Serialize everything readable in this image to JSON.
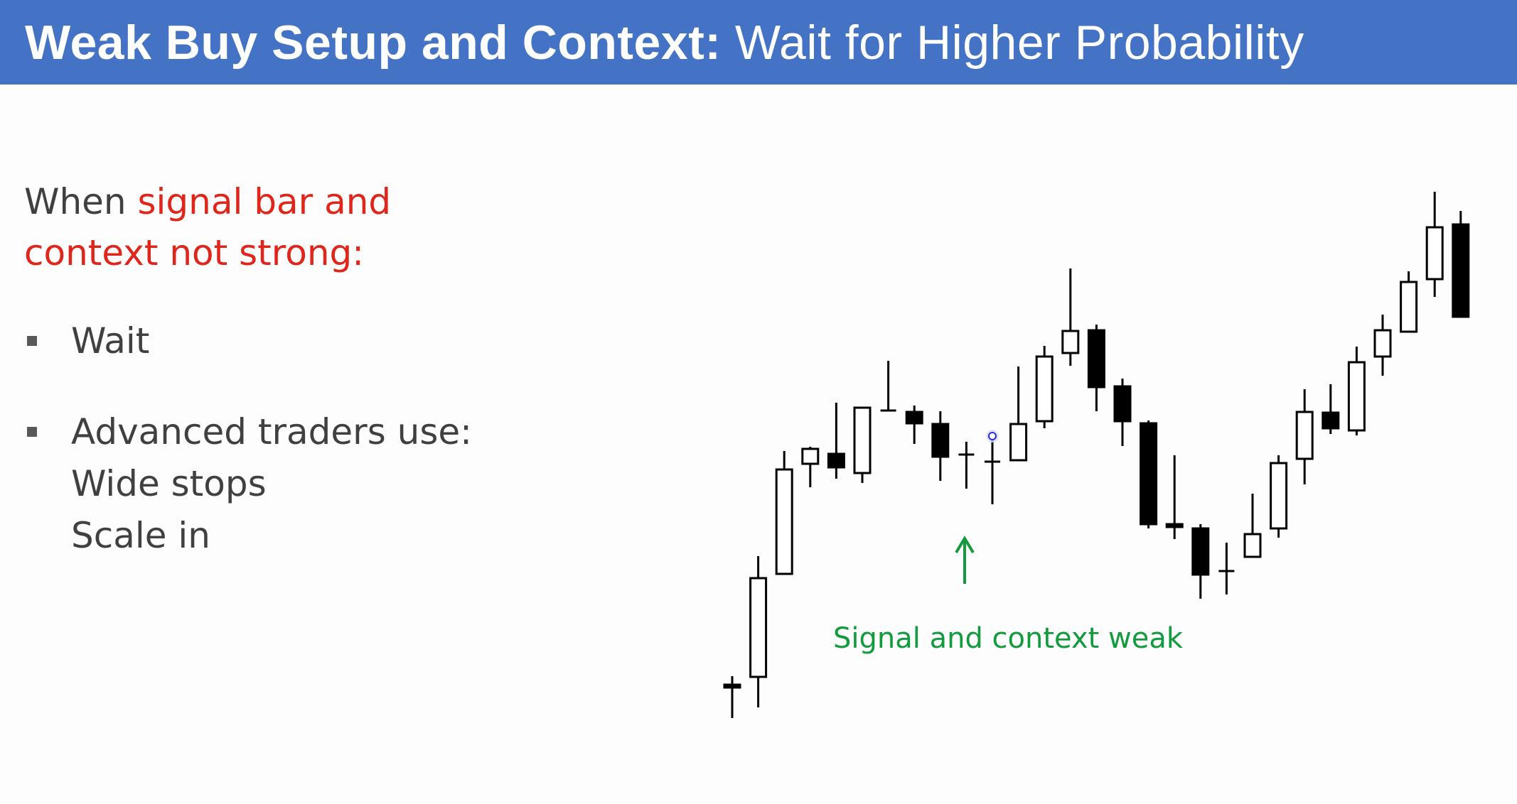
{
  "slide": {
    "title_bold": "Weak Buy Setup and Context:",
    "title_rest": "Wait for Higher Probability",
    "intro": {
      "prefix": "When ",
      "highlight_line1": "signal bar and",
      "highlight_line2": "context not strong:"
    },
    "bullets": {
      "wait": "Wait",
      "advanced": "Advanced traders use:",
      "wide_stops": "Wide stops",
      "scale_in": "Scale in"
    },
    "annotation": "Signal and context weak",
    "colors": {
      "title_bar": "#4472c4",
      "highlight": "#e0251b",
      "annotation": "#129b3d",
      "body_text": "#404040",
      "bull_fill": "#ffffff",
      "bear_fill": "#000000"
    },
    "icons": {
      "arrow": "up-arrow-icon",
      "cursor": "cursor-dot-icon"
    }
  },
  "chart_data": {
    "type": "candlestick",
    "signal_bar_index": 10,
    "bars": [
      {
        "o": 964,
        "h": 952,
        "l": 1011,
        "c": 968
      },
      {
        "o": 953,
        "h": 783,
        "l": 996,
        "c": 814
      },
      {
        "o": 808,
        "h": 635,
        "l": 808,
        "c": 661
      },
      {
        "o": 653,
        "h": 629,
        "l": 686,
        "c": 632
      },
      {
        "o": 639,
        "h": 567,
        "l": 674,
        "c": 658
      },
      {
        "o": 666,
        "h": 599,
        "l": 680,
        "c": 574
      },
      {
        "o": 578,
        "h": 508,
        "l": 578,
        "c": 578
      },
      {
        "o": 580,
        "h": 571,
        "l": 625,
        "c": 596
      },
      {
        "o": 597,
        "h": 579,
        "l": 677,
        "c": 643
      },
      {
        "o": 640,
        "h": 622,
        "l": 688,
        "c": 640
      },
      {
        "o": 650,
        "h": 612,
        "l": 710,
        "c": 650
      },
      {
        "o": 648,
        "h": 516,
        "l": 648,
        "c": 597
      },
      {
        "o": 593,
        "h": 487,
        "l": 603,
        "c": 502
      },
      {
        "o": 497,
        "h": 378,
        "l": 515,
        "c": 466
      },
      {
        "o": 465,
        "h": 457,
        "l": 579,
        "c": 545
      },
      {
        "o": 544,
        "h": 533,
        "l": 628,
        "c": 593
      },
      {
        "o": 596,
        "h": 592,
        "l": 744,
        "c": 738
      },
      {
        "o": 738,
        "h": 641,
        "l": 759,
        "c": 742
      },
      {
        "o": 744,
        "h": 738,
        "l": 843,
        "c": 809
      },
      {
        "o": 804,
        "h": 764,
        "l": 837,
        "c": 804
      },
      {
        "o": 784,
        "h": 695,
        "l": 784,
        "c": 752
      },
      {
        "o": 744,
        "h": 641,
        "l": 757,
        "c": 652
      },
      {
        "o": 646,
        "h": 548,
        "l": 682,
        "c": 580
      },
      {
        "o": 581,
        "h": 541,
        "l": 611,
        "c": 603
      },
      {
        "o": 606,
        "h": 488,
        "l": 613,
        "c": 510
      },
      {
        "o": 502,
        "h": 443,
        "l": 529,
        "c": 465
      },
      {
        "o": 467,
        "h": 382,
        "l": 467,
        "c": 397
      },
      {
        "o": 393,
        "h": 270,
        "l": 418,
        "c": 320
      },
      {
        "o": 316,
        "h": 297,
        "l": 446,
        "c": 446
      }
    ]
  }
}
